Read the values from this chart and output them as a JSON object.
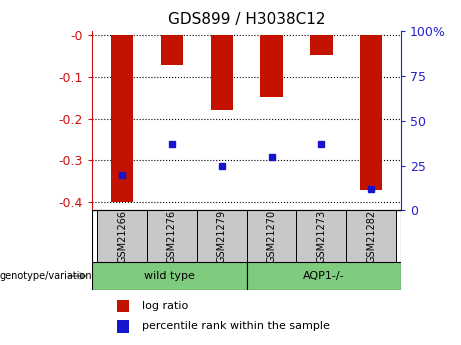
{
  "title": "GDS899 / H3038C12",
  "categories": [
    "GSM21266",
    "GSM21276",
    "GSM21279",
    "GSM21270",
    "GSM21273",
    "GSM21282"
  ],
  "log_ratios": [
    -0.4,
    -0.072,
    -0.18,
    -0.148,
    -0.048,
    -0.37
  ],
  "percentile_ranks": [
    20,
    37,
    25,
    30,
    37,
    12
  ],
  "ylim": [
    -0.42,
    0.01
  ],
  "yticks_left": [
    0,
    -0.1,
    -0.2,
    -0.3,
    -0.4
  ],
  "yticks_right": [
    0,
    25,
    50,
    75,
    100
  ],
  "bar_color": "#C41200",
  "dot_color": "#1515CC",
  "label_color_left": "#CC1111",
  "label_color_right": "#2222CC",
  "genotype_label": "genotype/variation",
  "legend_log_ratio": "log ratio",
  "legend_percentile": "percentile rank within the sample",
  "wt_label": "wild type",
  "aqp_label": "AQP1-/-",
  "green_color": "#7FCC7F",
  "gray_color": "#C8C8C8"
}
